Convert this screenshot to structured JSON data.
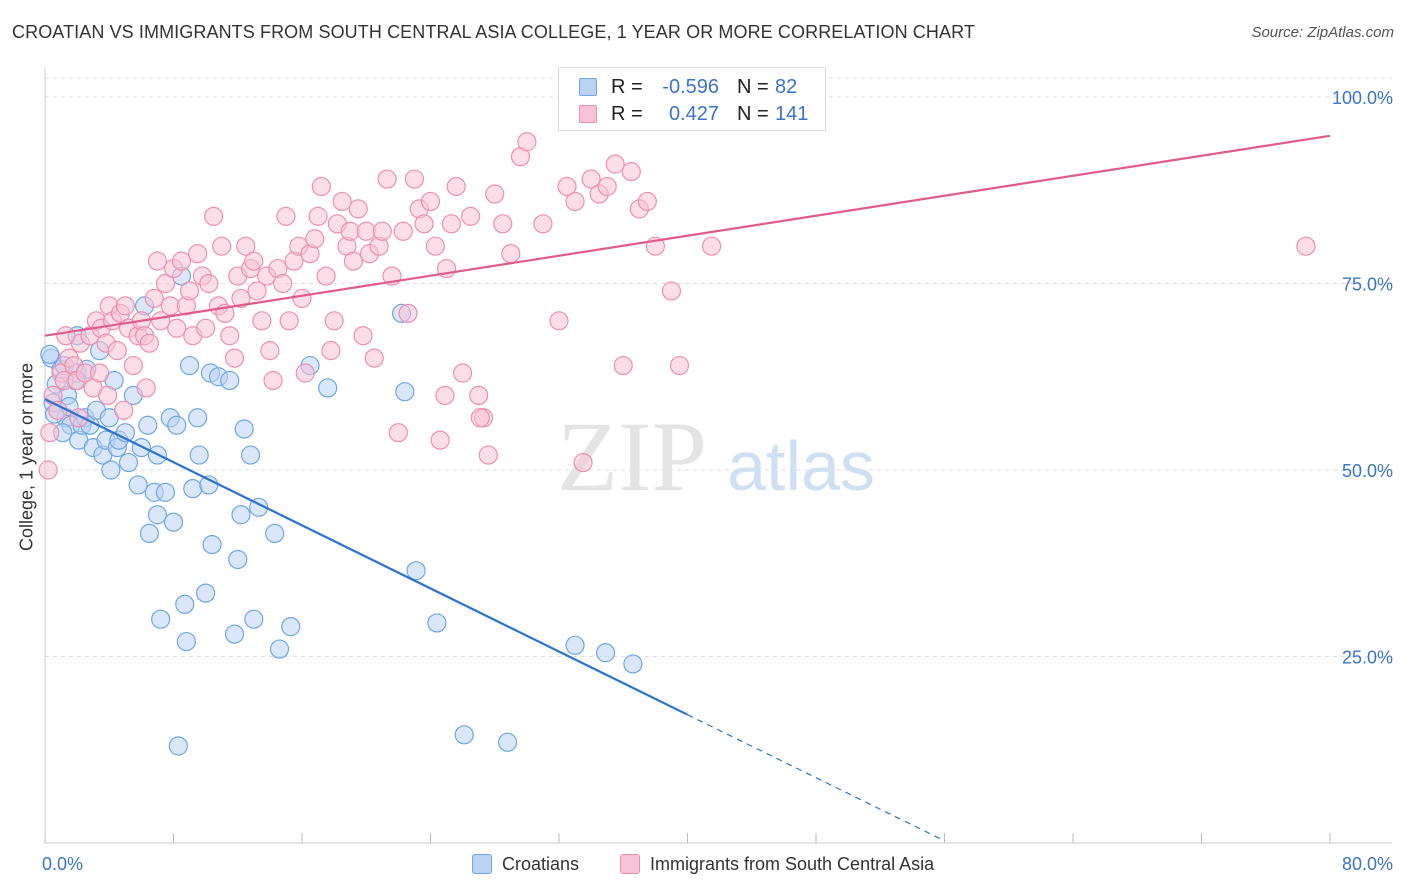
{
  "title": "CROATIAN VS IMMIGRANTS FROM SOUTH CENTRAL ASIA COLLEGE, 1 YEAR OR MORE CORRELATION CHART",
  "source": "Source: ZipAtlas.com",
  "watermark": {
    "zip": "ZIP",
    "atlas": "atlas"
  },
  "legend_top": {
    "rows": [
      {
        "r_label": "R =",
        "r_value": "-0.596",
        "n_label": "N =",
        "n_value": "82",
        "color": "#6fa6e8",
        "fill": "#b9d3f3"
      },
      {
        "r_label": "R =",
        "r_value": "0.427",
        "n_label": "N =",
        "n_value": "141",
        "color": "#ee8fb1",
        "fill": "#f7c3d6"
      }
    ]
  },
  "legend_bottom": [
    {
      "label": "Croatians",
      "color": "#6fa6e8",
      "fill": "#b9d3f3"
    },
    {
      "label": "Immigrants from South Central Asia",
      "color": "#ee8fb1",
      "fill": "#f7c3d6"
    }
  ],
  "chart_data": {
    "type": "scatter",
    "title": "CROATIAN VS IMMIGRANTS FROM SOUTH CENTRAL ASIA COLLEGE, 1 YEAR OR MORE CORRELATION CHART",
    "xlabel": "",
    "ylabel": "College, 1 year or more",
    "xlim": [
      0,
      80
    ],
    "ylim": [
      0,
      105
    ],
    "x_tick_labels": [
      {
        "value": 0,
        "label": "0.0%"
      },
      {
        "value": 80,
        "label": "80.0%"
      }
    ],
    "x_minor_ticks": [
      0,
      8,
      16,
      24,
      32,
      40,
      48,
      56,
      64,
      72,
      80
    ],
    "y_tick_labels": [
      {
        "value": 25,
        "label": "25.0%"
      },
      {
        "value": 50,
        "label": "50.0%"
      },
      {
        "value": 75,
        "label": "75.0%"
      },
      {
        "value": 100,
        "label": "100.0%"
      }
    ],
    "grid": true,
    "series": [
      {
        "name": "Croatians",
        "color": "#6fa6e8",
        "fill": "#b9d3f3",
        "trend": {
          "x": [
            0,
            40
          ],
          "y": [
            59.5,
            17.2
          ],
          "dashed_x": [
            40,
            56
          ],
          "dashed_y": [
            17.2,
            0.3
          ],
          "color": "#2e72d2"
        },
        "points": [
          [
            0.4,
            65
          ],
          [
            0.5,
            59
          ],
          [
            0.7,
            61.5
          ],
          [
            1,
            63.5
          ],
          [
            1.2,
            64
          ],
          [
            1.3,
            57
          ],
          [
            1.4,
            60
          ],
          [
            1.5,
            58.5
          ],
          [
            1.6,
            56
          ],
          [
            2,
            63
          ],
          [
            2,
            68
          ],
          [
            2.1,
            54
          ],
          [
            2.3,
            56
          ],
          [
            2.5,
            57
          ],
          [
            2.8,
            56
          ],
          [
            3,
            53
          ],
          [
            3.2,
            58
          ],
          [
            3.4,
            66
          ],
          [
            3.6,
            52
          ],
          [
            3.8,
            54
          ],
          [
            4,
            57
          ],
          [
            4.1,
            50
          ],
          [
            4.3,
            62
          ],
          [
            4.5,
            53
          ],
          [
            4.6,
            54
          ],
          [
            5,
            55
          ],
          [
            5.2,
            51
          ],
          [
            5.5,
            60
          ],
          [
            5.8,
            48
          ],
          [
            6,
            53
          ],
          [
            6.2,
            72
          ],
          [
            6.4,
            56
          ],
          [
            6.5,
            41.5
          ],
          [
            6.8,
            47
          ],
          [
            7,
            44
          ],
          [
            7,
            52
          ],
          [
            7.2,
            30
          ],
          [
            7.5,
            47
          ],
          [
            7.8,
            57
          ],
          [
            8,
            43
          ],
          [
            8.2,
            56
          ],
          [
            8.5,
            76
          ],
          [
            8.7,
            32
          ],
          [
            8.8,
            27
          ],
          [
            9,
            64
          ],
          [
            9.2,
            47.5
          ],
          [
            9.5,
            57
          ],
          [
            9.6,
            52
          ],
          [
            10,
            33.5
          ],
          [
            10.2,
            48
          ],
          [
            10.3,
            63
          ],
          [
            10.4,
            40
          ],
          [
            10.8,
            62.5
          ],
          [
            11.5,
            62
          ],
          [
            11.8,
            28
          ],
          [
            12,
            38
          ],
          [
            12.2,
            44
          ],
          [
            12.4,
            55.5
          ],
          [
            12.8,
            52
          ],
          [
            13,
            30
          ],
          [
            13.3,
            45
          ],
          [
            14.3,
            41.5
          ],
          [
            14.6,
            26
          ],
          [
            15.3,
            29
          ],
          [
            16.5,
            64
          ],
          [
            17.6,
            61
          ],
          [
            22.2,
            71
          ],
          [
            22.4,
            60.5
          ],
          [
            23.1,
            36.5
          ],
          [
            24.4,
            29.5
          ],
          [
            26.1,
            14.5
          ],
          [
            28.8,
            13.5
          ],
          [
            33,
            26.5
          ],
          [
            34.9,
            25.5
          ],
          [
            36.6,
            24
          ],
          [
            0.3,
            65.5
          ],
          [
            0.6,
            57.5
          ],
          [
            1.1,
            55
          ],
          [
            8.3,
            13
          ],
          [
            2.6,
            63.5
          ],
          [
            1.9,
            62
          ]
        ]
      },
      {
        "name": "Immigrants from South Central Asia",
        "color": "#ee8fb1",
        "fill": "#f7c3d6",
        "trend": {
          "x": [
            0,
            80
          ],
          "y": [
            68,
            94.8
          ],
          "color": "#e05b8c"
        },
        "points": [
          [
            0.2,
            50
          ],
          [
            0.3,
            55
          ],
          [
            0.5,
            60
          ],
          [
            0.8,
            58
          ],
          [
            1,
            63
          ],
          [
            1.2,
            62
          ],
          [
            1.5,
            65
          ],
          [
            1.8,
            64
          ],
          [
            2,
            62
          ],
          [
            2.2,
            67
          ],
          [
            2.5,
            63
          ],
          [
            2.8,
            68
          ],
          [
            3,
            61
          ],
          [
            3.2,
            70
          ],
          [
            3.5,
            69
          ],
          [
            3.8,
            67
          ],
          [
            4,
            72
          ],
          [
            4.2,
            70
          ],
          [
            4.5,
            66
          ],
          [
            4.7,
            71
          ],
          [
            5,
            72
          ],
          [
            5.2,
            69
          ],
          [
            5.5,
            64
          ],
          [
            5.8,
            68
          ],
          [
            6,
            70
          ],
          [
            6.2,
            68
          ],
          [
            6.5,
            67
          ],
          [
            6.8,
            73
          ],
          [
            7,
            78
          ],
          [
            7.2,
            70
          ],
          [
            7.5,
            75
          ],
          [
            7.8,
            72
          ],
          [
            8,
            77
          ],
          [
            8.2,
            69
          ],
          [
            8.5,
            78
          ],
          [
            8.8,
            72
          ],
          [
            9,
            74
          ],
          [
            9.2,
            68
          ],
          [
            9.5,
            79
          ],
          [
            9.8,
            76
          ],
          [
            10,
            69
          ],
          [
            10.2,
            75
          ],
          [
            10.5,
            84
          ],
          [
            10.8,
            72
          ],
          [
            11,
            80
          ],
          [
            11.2,
            71
          ],
          [
            11.5,
            68
          ],
          [
            11.8,
            65
          ],
          [
            12,
            76
          ],
          [
            12.2,
            73
          ],
          [
            12.5,
            80
          ],
          [
            12.8,
            77
          ],
          [
            13,
            78
          ],
          [
            13.2,
            74
          ],
          [
            13.5,
            70
          ],
          [
            13.8,
            76
          ],
          [
            14,
            66
          ],
          [
            14.2,
            62
          ],
          [
            14.5,
            77
          ],
          [
            14.8,
            75
          ],
          [
            15,
            84
          ],
          [
            15.2,
            70
          ],
          [
            15.5,
            78
          ],
          [
            15.8,
            80
          ],
          [
            16,
            73
          ],
          [
            16.2,
            63
          ],
          [
            16.5,
            79
          ],
          [
            16.8,
            81
          ],
          [
            17,
            84
          ],
          [
            17.2,
            88
          ],
          [
            17.5,
            76
          ],
          [
            17.8,
            66
          ],
          [
            18,
            70
          ],
          [
            18.2,
            83
          ],
          [
            18.5,
            86
          ],
          [
            18.8,
            80
          ],
          [
            19,
            82
          ],
          [
            19.2,
            78
          ],
          [
            19.5,
            85
          ],
          [
            19.8,
            68
          ],
          [
            20,
            82
          ],
          [
            20.2,
            79
          ],
          [
            20.5,
            65
          ],
          [
            20.8,
            80
          ],
          [
            21,
            82
          ],
          [
            21.3,
            89
          ],
          [
            21.6,
            76
          ],
          [
            22,
            55
          ],
          [
            22.3,
            82
          ],
          [
            22.6,
            71
          ],
          [
            23,
            89
          ],
          [
            23.3,
            85
          ],
          [
            23.6,
            83
          ],
          [
            24,
            86
          ],
          [
            24.3,
            80
          ],
          [
            24.6,
            54
          ],
          [
            25,
            77
          ],
          [
            25.3,
            83
          ],
          [
            25.6,
            88
          ],
          [
            26,
            63
          ],
          [
            26.5,
            84
          ],
          [
            27,
            60
          ],
          [
            27.3,
            57
          ],
          [
            27.6,
            52
          ],
          [
            28,
            87
          ],
          [
            28.5,
            83
          ],
          [
            29,
            79
          ],
          [
            29.6,
            92
          ],
          [
            30,
            94
          ],
          [
            31,
            83
          ],
          [
            32,
            70
          ],
          [
            32.5,
            88
          ],
          [
            33,
            86
          ],
          [
            33.5,
            51
          ],
          [
            34,
            89
          ],
          [
            34.5,
            87
          ],
          [
            35,
            88
          ],
          [
            35.5,
            91
          ],
          [
            36,
            64
          ],
          [
            36.5,
            90
          ],
          [
            37,
            85
          ],
          [
            37.5,
            86
          ],
          [
            38,
            80
          ],
          [
            39,
            74
          ],
          [
            39.5,
            64
          ],
          [
            41.5,
            80
          ],
          [
            78.5,
            80
          ],
          [
            1.3,
            68
          ],
          [
            2.1,
            57
          ],
          [
            4.9,
            58
          ],
          [
            6.3,
            61
          ],
          [
            3.9,
            60
          ],
          [
            24.9,
            60
          ],
          [
            27.1,
            57
          ],
          [
            3.4,
            63
          ]
        ]
      }
    ]
  }
}
